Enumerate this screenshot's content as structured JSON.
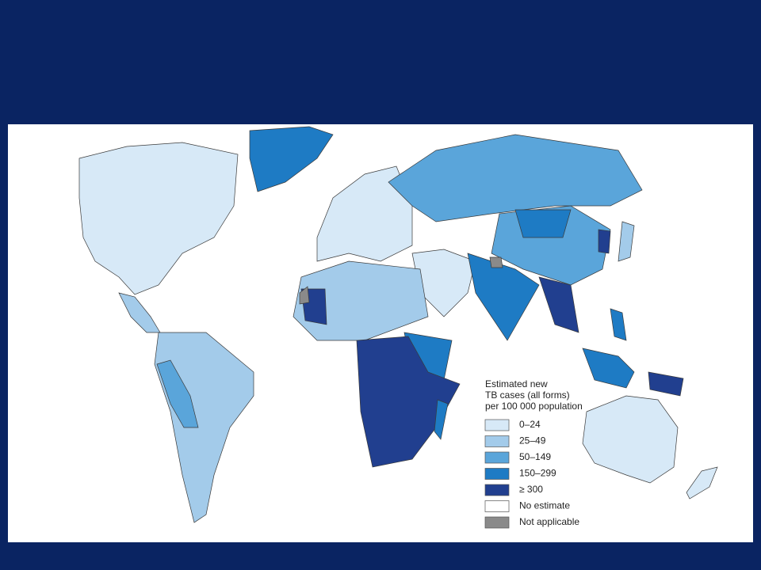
{
  "legend": {
    "title_lines": [
      "Estimated new",
      "TB cases (all forms)",
      "per 100 000 population"
    ],
    "items": [
      {
        "label": "0–24",
        "color": "#d7e9f7"
      },
      {
        "label": "25–49",
        "color": "#a3cbea"
      },
      {
        "label": "50–149",
        "color": "#5aa5da"
      },
      {
        "label": "150–299",
        "color": "#1e7bc4"
      },
      {
        "label": "≥ 300",
        "color": "#213f8f"
      },
      {
        "label": "No estimate",
        "color": "#ffffff"
      },
      {
        "label": "Not applicable",
        "color": "#8a8a8a"
      }
    ]
  }
}
